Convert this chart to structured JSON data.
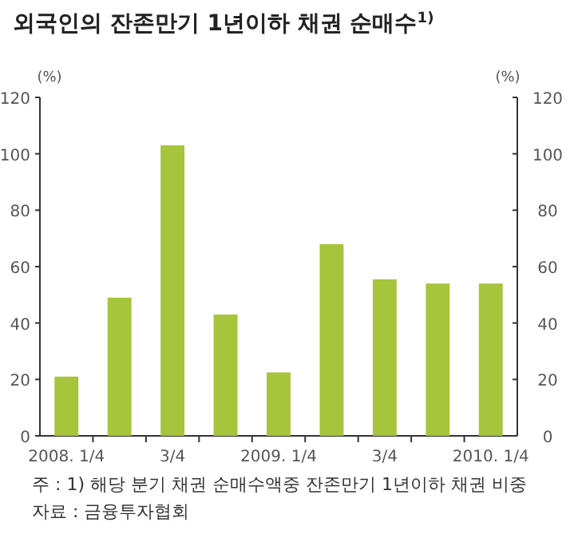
{
  "chart_data": {
    "type": "bar",
    "title": "외국인의 잔존만기 1년이하 채권 순매수$^{1)}$",
    "categories": [
      "2008. 1/4",
      null,
      "3/4",
      null,
      "2009. 1/4",
      null,
      "3/4",
      null,
      "2010. 1/4"
    ],
    "values": [
      21,
      49,
      103,
      43,
      22.5,
      68,
      55.5,
      54,
      54
    ],
    "color": "#a6c43c",
    "ylabel": "(%)",
    "y2label": "(%)",
    "ylim": [
      0,
      120
    ],
    "yticks": [
      0,
      20,
      40,
      60,
      80,
      100,
      120
    ],
    "y2lim": [
      0,
      120
    ],
    "y2ticks": [
      0,
      20,
      40,
      60,
      80,
      100,
      120
    ],
    "annotations": [
      "주 : 1) 해당 분기 채권 순매수액중 잔존만기 1년이하 채권 비중",
      "자료 : 금융투자협회"
    ]
  }
}
